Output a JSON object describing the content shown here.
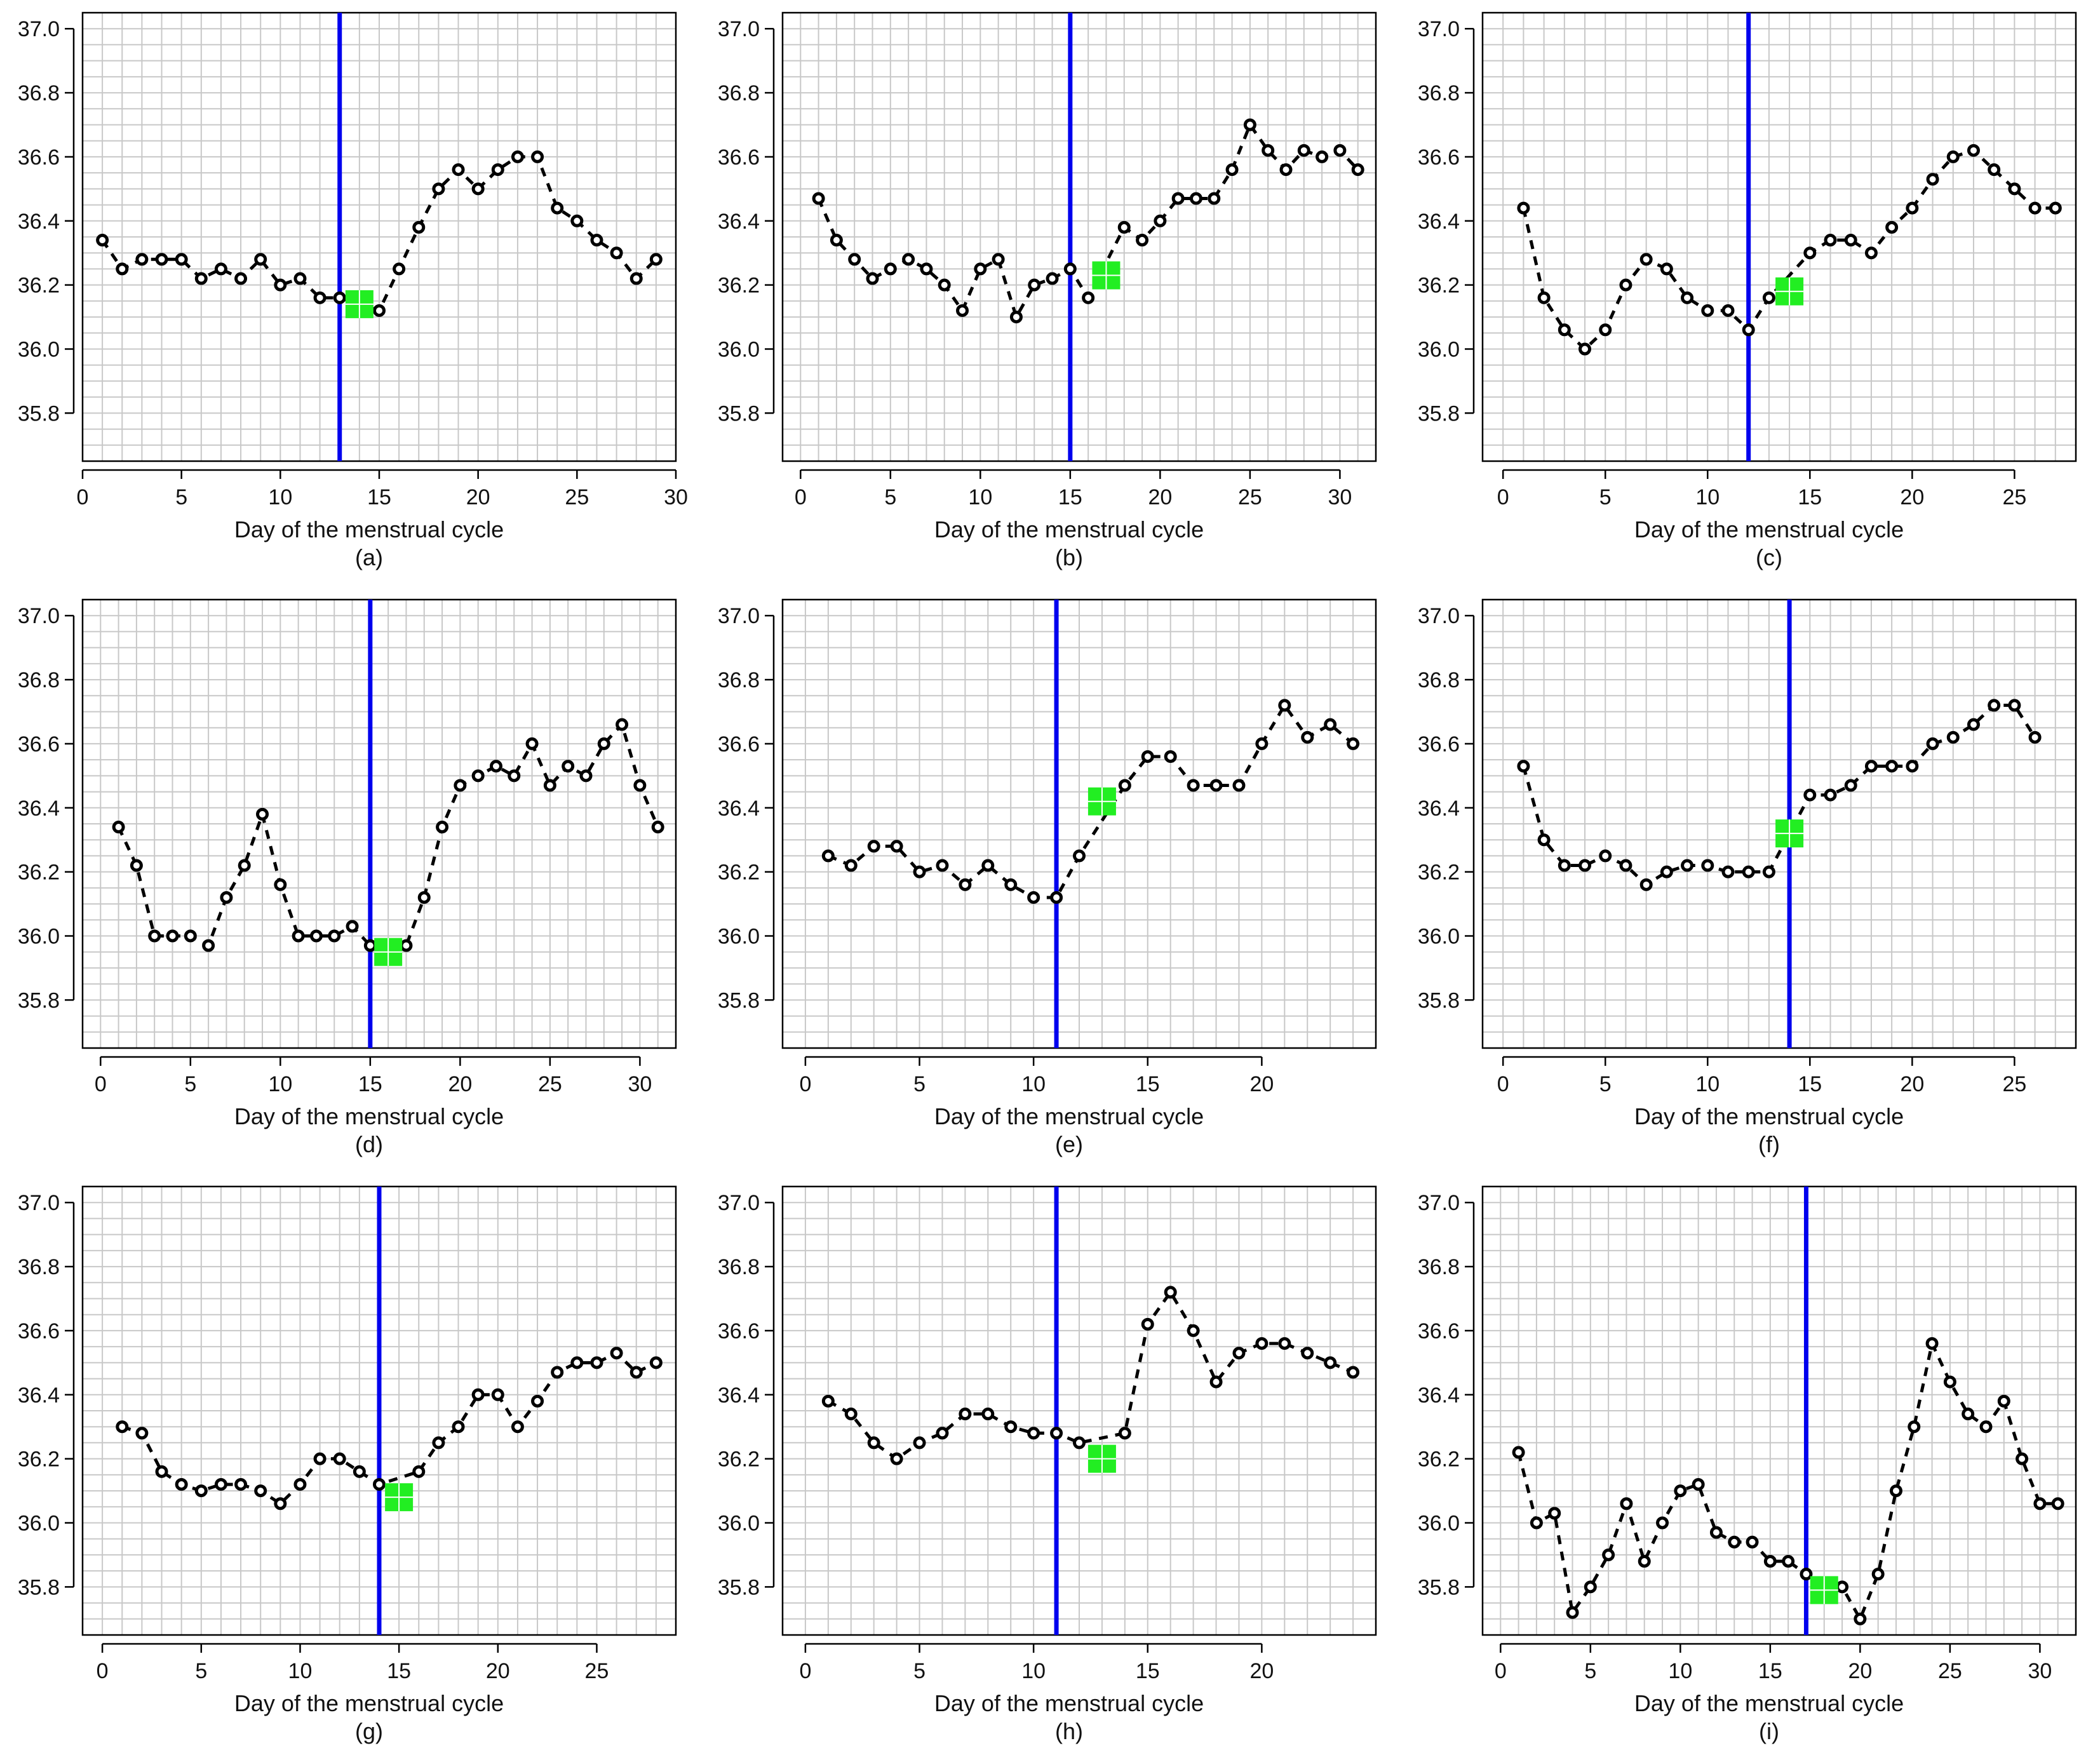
{
  "figure": {
    "panel_count": 9
  },
  "chart_data": [
    {
      "type": "line",
      "panel_label": "(a)",
      "xlabel": "Day of the menstrual cycle",
      "ylabel": "",
      "xlim": [
        0,
        30
      ],
      "ylim": [
        35.65,
        37.05
      ],
      "x_ticks": [
        0,
        5,
        10,
        15,
        20,
        25,
        30
      ],
      "y_ticks": [
        35.8,
        36.0,
        36.2,
        36.4,
        36.6,
        36.8,
        37.0
      ],
      "x_tick_labels": [
        "0",
        "5",
        "10",
        "15",
        "20",
        "25",
        "30"
      ],
      "y_tick_labels": [
        "35.8",
        "36.0",
        "36.2",
        "36.4",
        "36.6",
        "36.8",
        "37.0"
      ],
      "grid": true,
      "vline_day": 13,
      "vline_color": "#0000ee",
      "marker": {
        "day": 14,
        "value": 36.14,
        "color": "#22ee22"
      },
      "series": [
        {
          "name": "temperature",
          "x": [
            1,
            2,
            3,
            4,
            5,
            6,
            7,
            8,
            9,
            10,
            11,
            12,
            13,
            15,
            16,
            17,
            18,
            19,
            20,
            21,
            22,
            23,
            24,
            25,
            26,
            27,
            28,
            29
          ],
          "y": [
            36.34,
            36.25,
            36.28,
            36.28,
            36.28,
            36.22,
            36.25,
            36.22,
            36.28,
            36.2,
            36.22,
            36.16,
            36.16,
            36.12,
            36.25,
            36.38,
            36.5,
            36.56,
            36.5,
            36.56,
            36.6,
            36.6,
            36.44,
            36.4,
            36.34,
            36.3,
            36.22,
            36.28
          ]
        }
      ]
    },
    {
      "type": "line",
      "panel_label": "(b)",
      "xlabel": "Day of the menstrual cycle",
      "ylabel": "",
      "xlim": [
        -1,
        32
      ],
      "ylim": [
        35.65,
        37.05
      ],
      "x_ticks": [
        0,
        5,
        10,
        15,
        20,
        25,
        30
      ],
      "y_ticks": [
        35.8,
        36.0,
        36.2,
        36.4,
        36.6,
        36.8,
        37.0
      ],
      "x_tick_labels": [
        "0",
        "5",
        "10",
        "15",
        "20",
        "25",
        "30"
      ],
      "y_tick_labels": [
        "35.8",
        "36.0",
        "36.2",
        "36.4",
        "36.6",
        "36.8",
        "37.0"
      ],
      "grid": true,
      "vline_day": 15,
      "vline_color": "#0000ee",
      "marker": {
        "day": 17,
        "value": 36.23,
        "color": "#22ee22"
      },
      "series": [
        {
          "name": "temperature",
          "x": [
            1,
            2,
            3,
            4,
            5,
            6,
            7,
            8,
            9,
            10,
            11,
            12,
            13,
            14,
            15,
            16,
            18,
            19,
            20,
            21,
            22,
            23,
            24,
            25,
            26,
            27,
            28,
            29,
            30,
            31
          ],
          "y": [
            36.47,
            36.34,
            36.28,
            36.22,
            36.25,
            36.28,
            36.25,
            36.2,
            36.12,
            36.25,
            36.28,
            36.1,
            36.2,
            36.22,
            36.25,
            36.16,
            36.38,
            36.34,
            36.4,
            36.47,
            36.47,
            36.47,
            36.56,
            36.7,
            36.62,
            36.56,
            36.62,
            36.6,
            36.62,
            36.56
          ]
        }
      ]
    },
    {
      "type": "line",
      "panel_label": "(c)",
      "xlabel": "Day of the menstrual cycle",
      "ylabel": "",
      "xlim": [
        -1,
        28
      ],
      "ylim": [
        35.65,
        37.05
      ],
      "x_ticks": [
        0,
        5,
        10,
        15,
        20,
        25
      ],
      "y_ticks": [
        35.8,
        36.0,
        36.2,
        36.4,
        36.6,
        36.8,
        37.0
      ],
      "x_tick_labels": [
        "0",
        "5",
        "10",
        "15",
        "20",
        "25"
      ],
      "y_tick_labels": [
        "35.8",
        "36.0",
        "36.2",
        "36.4",
        "36.6",
        "36.8",
        "37.0"
      ],
      "grid": true,
      "vline_day": 12,
      "vline_color": "#0000ee",
      "marker": {
        "day": 14,
        "value": 36.18,
        "color": "#22ee22"
      },
      "series": [
        {
          "name": "temperature",
          "x": [
            1,
            2,
            3,
            4,
            5,
            6,
            7,
            8,
            9,
            10,
            11,
            12,
            13,
            15,
            16,
            17,
            18,
            19,
            20,
            21,
            22,
            23,
            24,
            25,
            26,
            27
          ],
          "y": [
            36.44,
            36.16,
            36.06,
            36.0,
            36.06,
            36.2,
            36.28,
            36.25,
            36.16,
            36.12,
            36.12,
            36.06,
            36.16,
            36.3,
            36.34,
            36.34,
            36.3,
            36.38,
            36.44,
            36.53,
            36.6,
            36.62,
            36.56,
            36.5,
            36.44,
            36.44
          ]
        }
      ]
    },
    {
      "type": "line",
      "panel_label": "(d)",
      "xlabel": "Day of the menstrual cycle",
      "ylabel": "",
      "xlim": [
        -1,
        32
      ],
      "ylim": [
        35.65,
        37.05
      ],
      "x_ticks": [
        0,
        5,
        10,
        15,
        20,
        25,
        30
      ],
      "y_ticks": [
        35.8,
        36.0,
        36.2,
        36.4,
        36.6,
        36.8,
        37.0
      ],
      "x_tick_labels": [
        "0",
        "5",
        "10",
        "15",
        "20",
        "25",
        "30"
      ],
      "y_tick_labels": [
        "35.8",
        "36.0",
        "36.2",
        "36.4",
        "36.6",
        "36.8",
        "37.0"
      ],
      "grid": true,
      "vline_day": 15,
      "vline_color": "#0000ee",
      "marker": {
        "day": 16,
        "value": 35.95,
        "color": "#22ee22"
      },
      "series": [
        {
          "name": "temperature",
          "x": [
            1,
            2,
            3,
            4,
            5,
            6,
            7,
            8,
            9,
            10,
            11,
            12,
            13,
            14,
            15,
            17,
            18,
            19,
            20,
            21,
            22,
            23,
            24,
            25,
            26,
            27,
            28,
            29,
            30,
            31
          ],
          "y": [
            36.34,
            36.22,
            36.0,
            36.0,
            36.0,
            35.97,
            36.12,
            36.22,
            36.38,
            36.16,
            36.0,
            36.0,
            36.0,
            36.03,
            35.97,
            35.97,
            36.12,
            36.34,
            36.47,
            36.5,
            36.53,
            36.5,
            36.6,
            36.47,
            36.53,
            36.5,
            36.6,
            36.66,
            36.47,
            36.34
          ]
        }
      ]
    },
    {
      "type": "line",
      "panel_label": "(e)",
      "xlabel": "Day of the menstrual cycle",
      "ylabel": "",
      "xlim": [
        -1,
        25
      ],
      "ylim": [
        35.65,
        37.05
      ],
      "x_ticks": [
        0,
        5,
        10,
        15,
        20
      ],
      "y_ticks": [
        35.8,
        36.0,
        36.2,
        36.4,
        36.6,
        36.8,
        37.0
      ],
      "x_tick_labels": [
        "0",
        "5",
        "10",
        "15",
        "20"
      ],
      "y_tick_labels": [
        "35.8",
        "36.0",
        "36.2",
        "36.4",
        "36.6",
        "36.8",
        "37.0"
      ],
      "grid": true,
      "vline_day": 11,
      "vline_color": "#0000ee",
      "marker": {
        "day": 13,
        "value": 36.42,
        "color": "#22ee22"
      },
      "series": [
        {
          "name": "temperature",
          "x": [
            1,
            2,
            3,
            4,
            5,
            6,
            7,
            8,
            9,
            10,
            11,
            12,
            14,
            15,
            16,
            17,
            18,
            19,
            20,
            21,
            22,
            23,
            24
          ],
          "y": [
            36.25,
            36.22,
            36.28,
            36.28,
            36.2,
            36.22,
            36.16,
            36.22,
            36.16,
            36.12,
            36.12,
            36.25,
            36.47,
            36.56,
            36.56,
            36.47,
            36.47,
            36.47,
            36.6,
            36.72,
            36.62,
            36.66,
            36.6
          ]
        }
      ]
    },
    {
      "type": "line",
      "panel_label": "(f)",
      "xlabel": "Day of the menstrual cycle",
      "ylabel": "",
      "xlim": [
        -1,
        28
      ],
      "ylim": [
        35.65,
        37.05
      ],
      "x_ticks": [
        0,
        5,
        10,
        15,
        20,
        25
      ],
      "y_ticks": [
        35.8,
        36.0,
        36.2,
        36.4,
        36.6,
        36.8,
        37.0
      ],
      "x_tick_labels": [
        "0",
        "5",
        "10",
        "15",
        "20",
        "25"
      ],
      "y_tick_labels": [
        "35.8",
        "36.0",
        "36.2",
        "36.4",
        "36.6",
        "36.8",
        "37.0"
      ],
      "grid": true,
      "vline_day": 14,
      "vline_color": "#0000ee",
      "marker": {
        "day": 14,
        "value": 36.32,
        "color": "#22ee22"
      },
      "series": [
        {
          "name": "temperature",
          "x": [
            1,
            2,
            3,
            4,
            5,
            6,
            7,
            8,
            9,
            10,
            11,
            12,
            13,
            15,
            16,
            17,
            18,
            19,
            20,
            21,
            22,
            23,
            24,
            25,
            26
          ],
          "y": [
            36.53,
            36.3,
            36.22,
            36.22,
            36.25,
            36.22,
            36.16,
            36.2,
            36.22,
            36.22,
            36.2,
            36.2,
            36.2,
            36.44,
            36.44,
            36.47,
            36.53,
            36.53,
            36.53,
            36.6,
            36.62,
            36.66,
            36.72,
            36.72,
            36.62
          ]
        }
      ]
    },
    {
      "type": "line",
      "panel_label": "(g)",
      "xlabel": "Day of the menstrual cycle",
      "ylabel": "",
      "xlim": [
        -1,
        29
      ],
      "ylim": [
        35.65,
        37.05
      ],
      "x_ticks": [
        0,
        5,
        10,
        15,
        20,
        25
      ],
      "y_ticks": [
        35.8,
        36.0,
        36.2,
        36.4,
        36.6,
        36.8,
        37.0
      ],
      "x_tick_labels": [
        "0",
        "5",
        "10",
        "15",
        "20",
        "25"
      ],
      "y_tick_labels": [
        "35.8",
        "36.0",
        "36.2",
        "36.4",
        "36.6",
        "36.8",
        "37.0"
      ],
      "grid": true,
      "vline_day": 14,
      "vline_color": "#0000ee",
      "marker": {
        "day": 15,
        "value": 36.08,
        "color": "#22ee22"
      },
      "series": [
        {
          "name": "temperature",
          "x": [
            1,
            2,
            3,
            4,
            5,
            6,
            7,
            8,
            9,
            10,
            11,
            12,
            13,
            14,
            16,
            17,
            18,
            19,
            20,
            21,
            22,
            23,
            24,
            25,
            26,
            27,
            28
          ],
          "y": [
            36.3,
            36.28,
            36.16,
            36.12,
            36.1,
            36.12,
            36.12,
            36.1,
            36.06,
            36.12,
            36.2,
            36.2,
            36.16,
            36.12,
            36.16,
            36.25,
            36.3,
            36.4,
            36.4,
            36.3,
            36.38,
            36.47,
            36.5,
            36.5,
            36.53,
            36.47,
            36.5
          ]
        }
      ]
    },
    {
      "type": "line",
      "panel_label": "(h)",
      "xlabel": "Day of the menstrual cycle",
      "ylabel": "",
      "xlim": [
        -1,
        25
      ],
      "ylim": [
        35.65,
        37.05
      ],
      "x_ticks": [
        0,
        5,
        10,
        15,
        20
      ],
      "y_ticks": [
        35.8,
        36.0,
        36.2,
        36.4,
        36.6,
        36.8,
        37.0
      ],
      "x_tick_labels": [
        "0",
        "5",
        "10",
        "15",
        "20"
      ],
      "y_tick_labels": [
        "35.8",
        "36.0",
        "36.2",
        "36.4",
        "36.6",
        "36.8",
        "37.0"
      ],
      "grid": true,
      "vline_day": 11,
      "vline_color": "#0000ee",
      "marker": {
        "day": 13,
        "value": 36.2,
        "color": "#22ee22"
      },
      "series": [
        {
          "name": "temperature",
          "x": [
            1,
            2,
            3,
            4,
            5,
            6,
            7,
            8,
            9,
            10,
            11,
            12,
            14,
            15,
            16,
            17,
            18,
            19,
            20,
            21,
            22,
            23,
            24
          ],
          "y": [
            36.38,
            36.34,
            36.25,
            36.2,
            36.25,
            36.28,
            36.34,
            36.34,
            36.3,
            36.28,
            36.28,
            36.25,
            36.28,
            36.62,
            36.72,
            36.6,
            36.44,
            36.53,
            36.56,
            36.56,
            36.53,
            36.5,
            36.47
          ]
        }
      ]
    },
    {
      "type": "line",
      "panel_label": "(i)",
      "xlabel": "Day of the menstrual cycle",
      "ylabel": "",
      "xlim": [
        -1,
        32
      ],
      "ylim": [
        35.65,
        37.05
      ],
      "x_ticks": [
        0,
        5,
        10,
        15,
        20,
        25,
        30
      ],
      "y_ticks": [
        35.8,
        36.0,
        36.2,
        36.4,
        36.6,
        36.8,
        37.0
      ],
      "x_tick_labels": [
        "0",
        "5",
        "10",
        "15",
        "20",
        "25",
        "30"
      ],
      "y_tick_labels": [
        "35.8",
        "36.0",
        "36.2",
        "36.4",
        "36.6",
        "36.8",
        "37.0"
      ],
      "grid": true,
      "vline_day": 17,
      "vline_color": "#0000ee",
      "marker": {
        "day": 18,
        "value": 35.79,
        "color": "#22ee22"
      },
      "series": [
        {
          "name": "temperature",
          "x": [
            1,
            2,
            3,
            4,
            5,
            6,
            7,
            8,
            9,
            10,
            11,
            12,
            13,
            14,
            15,
            16,
            17,
            19,
            20,
            21,
            22,
            23,
            24,
            25,
            26,
            27,
            28,
            29,
            30,
            31
          ],
          "y": [
            36.22,
            36.0,
            36.03,
            35.72,
            35.8,
            35.9,
            36.06,
            35.88,
            36.0,
            36.1,
            36.12,
            35.97,
            35.94,
            35.94,
            35.88,
            35.88,
            35.84,
            35.8,
            35.7,
            35.84,
            36.1,
            36.3,
            36.56,
            36.44,
            36.34,
            36.3,
            36.38,
            36.2,
            36.06,
            36.06
          ]
        }
      ]
    }
  ]
}
